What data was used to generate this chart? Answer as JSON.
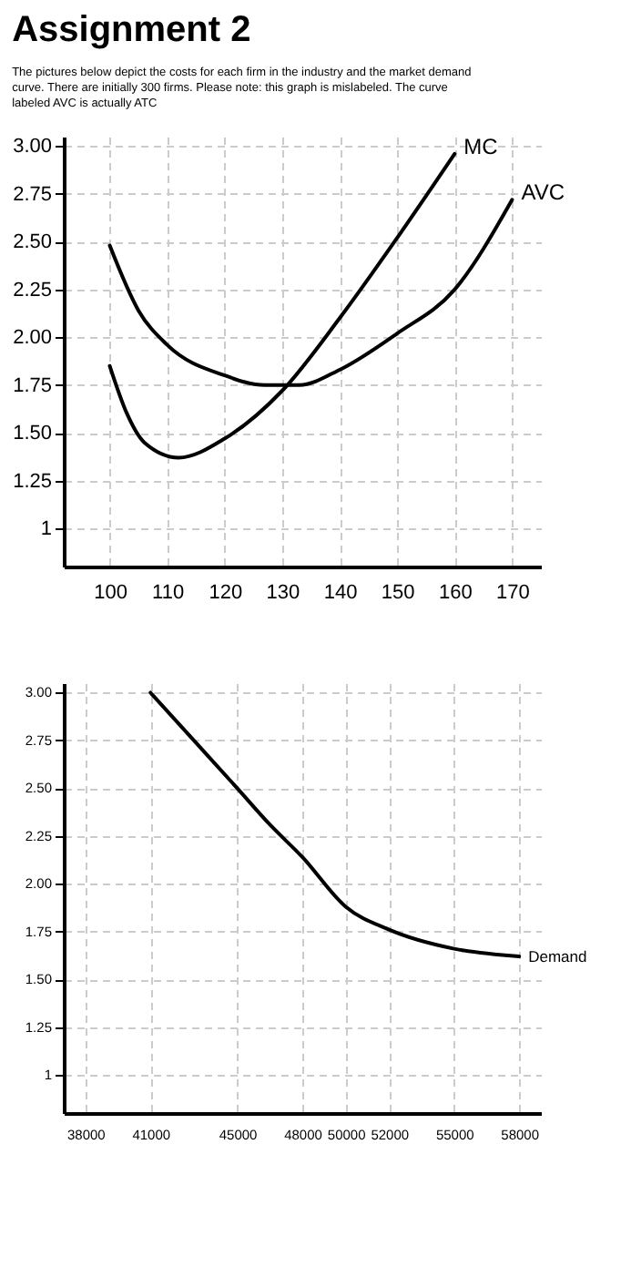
{
  "chart_data": [
    {
      "type": "line",
      "title": "Assignment 2",
      "subtitle": "The pictures below depict the costs for each firm in the industry and the market demand curve. There are initially 300 firms. Please note: this graph is mislabeled. The curve labeled AVC is actually ATC",
      "xlim": [
        92,
        175
      ],
      "ylim": [
        0.8,
        3.05
      ],
      "xticks": [
        100,
        110,
        120,
        130,
        140,
        150,
        160,
        170
      ],
      "yticks": [
        {
          "value": 1,
          "label": "1"
        },
        {
          "value": 1.25,
          "label": "1.25"
        },
        {
          "value": 1.5,
          "label": "1.50"
        },
        {
          "value": 1.75,
          "label": "1.75"
        },
        {
          "value": 2,
          "label": "2.00"
        },
        {
          "value": 2.25,
          "label": "2.25"
        },
        {
          "value": 2.5,
          "label": "2.50"
        },
        {
          "value": 2.75,
          "label": "2.75"
        },
        {
          "value": 3,
          "label": "3.00"
        }
      ],
      "grid": true,
      "legend": false,
      "line_style": "solid",
      "series": [
        {
          "name": "MC",
          "color": "#000000",
          "x": [
            100,
            103,
            106,
            112,
            120,
            130,
            140,
            150,
            160
          ],
          "values": [
            1.85,
            1.6,
            1.45,
            1.37,
            1.47,
            1.72,
            2.1,
            2.52,
            2.96
          ]
        },
        {
          "name": "AVC",
          "color": "#000000",
          "x": [
            100,
            105,
            110,
            120,
            127,
            133,
            140,
            150,
            160,
            170
          ],
          "values": [
            2.48,
            2.14,
            1.96,
            1.8,
            1.75,
            1.75,
            1.83,
            2.02,
            2.25,
            2.72
          ]
        }
      ]
    },
    {
      "type": "line",
      "xlim": [
        37000,
        59000
      ],
      "ylim": [
        0.8,
        3.05
      ],
      "xticks": [
        38000,
        41000,
        45000,
        48000,
        50000,
        52000,
        55000,
        58000
      ],
      "yticks": [
        {
          "value": 1,
          "label": "1"
        },
        {
          "value": 1.25,
          "label": "1.25"
        },
        {
          "value": 1.5,
          "label": "1.50"
        },
        {
          "value": 1.75,
          "label": "1.75"
        },
        {
          "value": 2,
          "label": "2.00"
        },
        {
          "value": 2.25,
          "label": "2.25"
        },
        {
          "value": 2.5,
          "label": "2.50"
        },
        {
          "value": 2.75,
          "label": "2.75"
        },
        {
          "value": 3,
          "label": "3.00"
        }
      ],
      "grid": true,
      "legend": false,
      "line_style": "solid",
      "series": [
        {
          "name": "Demand",
          "color": "#000000",
          "x": [
            41000,
            43000,
            45000,
            46500,
            48000,
            50000,
            52000,
            55000,
            58000
          ],
          "values": [
            3.0,
            2.75,
            2.5,
            2.31,
            2.14,
            1.88,
            1.76,
            1.66,
            1.62
          ]
        }
      ]
    }
  ]
}
